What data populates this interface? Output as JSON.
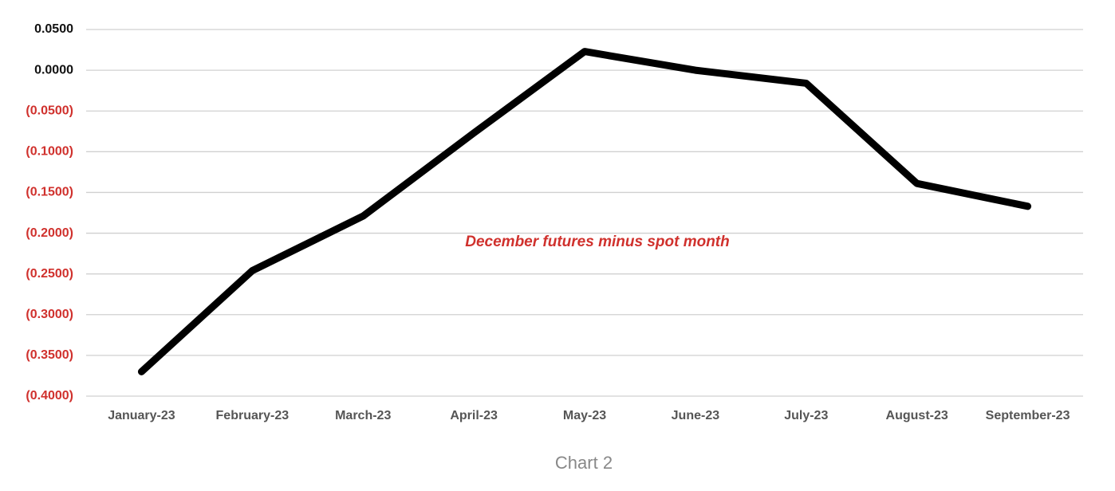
{
  "chart_data": {
    "type": "line",
    "annotation": "December futures minus spot month",
    "caption": "Chart 2",
    "categories": [
      "January-23",
      "February-23",
      "March-23",
      "April-23",
      "May-23",
      "June-23",
      "July-23",
      "August-23",
      "September-23"
    ],
    "series": [
      {
        "color": "#000000",
        "values": [
          -0.37,
          -0.246,
          -0.179,
          -0.077,
          0.023,
          0.0,
          -0.016,
          -0.139,
          -0.167
        ]
      }
    ],
    "ylim": [
      -0.4,
      0.05
    ],
    "yticks": [
      {
        "value": 0.05,
        "label": "0.0500"
      },
      {
        "value": 0,
        "label": "0.0000"
      },
      {
        "value": -0.05,
        "label": "(0.0500)"
      },
      {
        "value": -0.1,
        "label": "(0.1000)"
      },
      {
        "value": -0.15,
        "label": "(0.1500)"
      },
      {
        "value": -0.2,
        "label": "(0.2000)"
      },
      {
        "value": -0.25,
        "label": "(0.2500)"
      },
      {
        "value": -0.3,
        "label": "(0.3000)"
      },
      {
        "value": -0.35,
        "label": "(0.3500)"
      },
      {
        "value": -0.4,
        "label": "(0.4000)"
      }
    ],
    "grid": true,
    "positive_tick_color": "#111111",
    "negative_tick_color": "#d0312d",
    "annotation_color": "#d0312d"
  }
}
